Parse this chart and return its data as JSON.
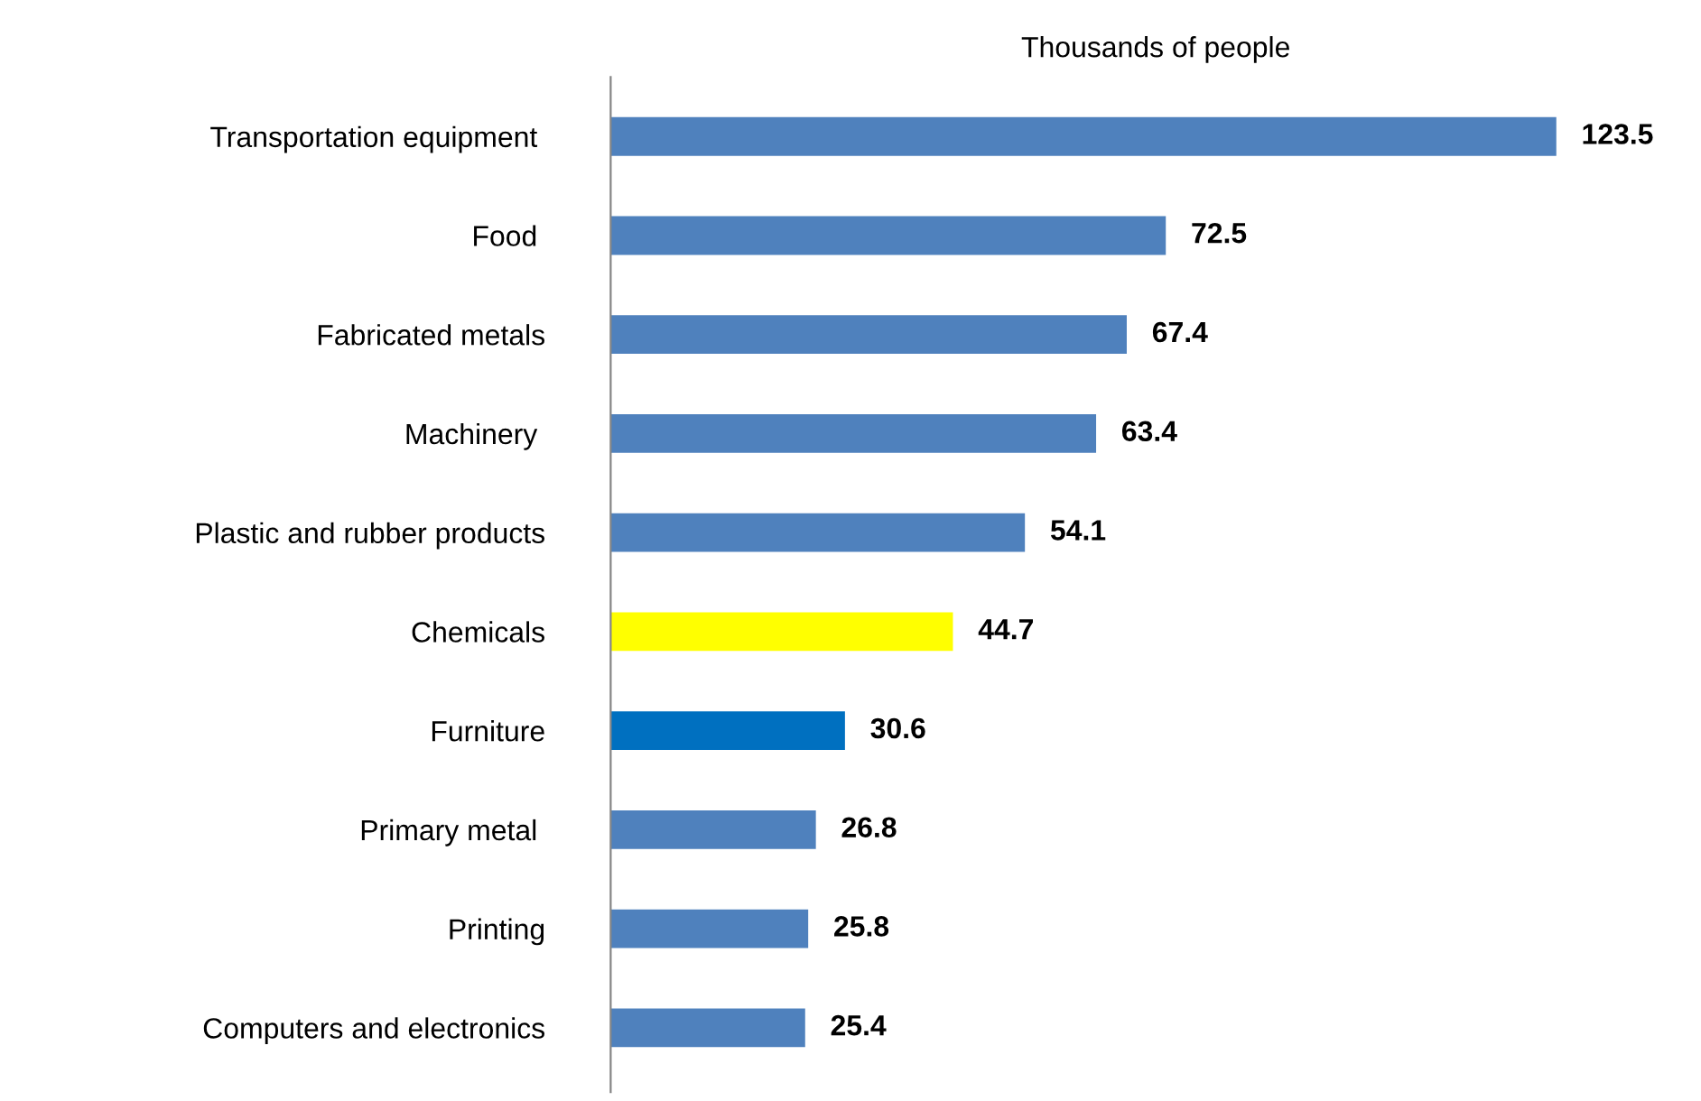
{
  "chart_data": {
    "type": "bar",
    "orientation": "horizontal",
    "xlabel": "Thousands of people",
    "categories": [
      "Transportation equipment ",
      "Food ",
      "Fabricated metals",
      "Machinery ",
      "Plastic and rubber products",
      "Chemicals",
      "Furniture",
      "Primary metal ",
      "Printing",
      "Computers and electronics"
    ],
    "values": [
      123.5,
      72.5,
      67.4,
      63.4,
      54.1,
      44.7,
      30.6,
      26.8,
      25.8,
      25.4
    ],
    "colors": [
      "#4f81bd",
      "#4f81bd",
      "#4f81bd",
      "#4f81bd",
      "#4f81bd",
      "#ffff00",
      "#0070c0",
      "#4f81bd",
      "#4f81bd",
      "#4f81bd"
    ],
    "data_labels": true,
    "grid": false,
    "legend": false
  }
}
